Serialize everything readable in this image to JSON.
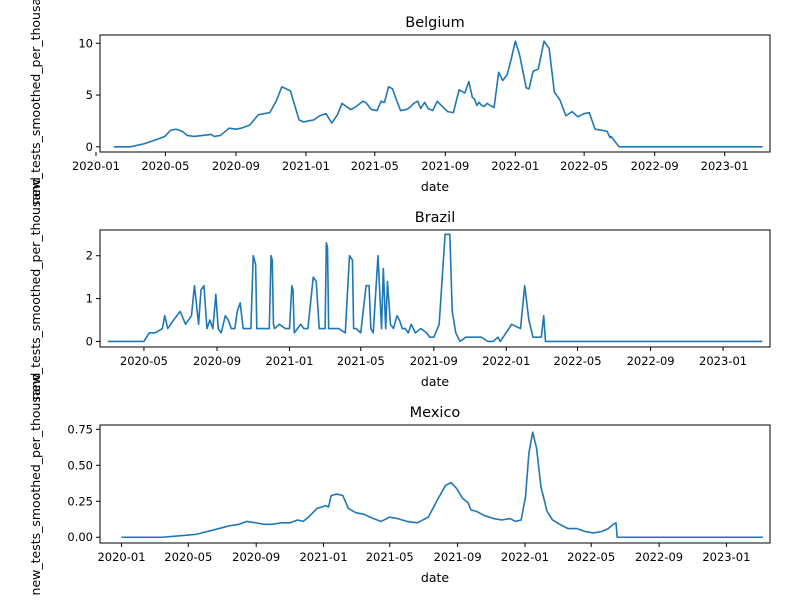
{
  "colors": {
    "line": "#1f77b4",
    "background": "#ffffff"
  },
  "chart_data": [
    {
      "type": "line",
      "title": "Belgium",
      "xlabel": "date",
      "ylabel": "new_tests_smoothed_per_thousand",
      "xlim": [
        "2020-01-08",
        "2023-03-21"
      ],
      "ylim": [
        -0.5,
        10.8
      ],
      "x_ticks": [
        "2020-01",
        "2020-05",
        "2020-09",
        "2021-01",
        "2021-05",
        "2021-09",
        "2022-01",
        "2022-05",
        "2022-09",
        "2023-01"
      ],
      "y_ticks": [
        0,
        5,
        10
      ],
      "grid": false,
      "series": [
        {
          "x": [
            "2020-02-01",
            "2020-03-01",
            "2020-03-25",
            "2020-04-15",
            "2020-04-30",
            "2020-05-10",
            "2020-05-20",
            "2020-05-30",
            "2020-06-08",
            "2020-06-20",
            "2020-07-05",
            "2020-07-20",
            "2020-07-25",
            "2020-08-05",
            "2020-08-20",
            "2020-09-01",
            "2020-09-10",
            "2020-09-25",
            "2020-10-10",
            "2020-10-20",
            "2020-10-30",
            "2020-11-10",
            "2020-11-20",
            "2020-12-05",
            "2020-12-20",
            "2020-12-28",
            "2021-01-05",
            "2021-01-15",
            "2021-01-25",
            "2021-02-05",
            "2021-02-15",
            "2021-02-25",
            "2021-03-05",
            "2021-03-20",
            "2021-03-30",
            "2021-04-10",
            "2021-04-15",
            "2021-04-25",
            "2021-05-05",
            "2021-05-12",
            "2021-05-18",
            "2021-05-25",
            "2021-06-01",
            "2021-06-08",
            "2021-06-15",
            "2021-06-25",
            "2021-07-01",
            "2021-07-08",
            "2021-07-15",
            "2021-07-20",
            "2021-07-27",
            "2021-08-02",
            "2021-08-10",
            "2021-08-18",
            "2021-08-25",
            "2021-09-05",
            "2021-09-15",
            "2021-09-25",
            "2021-10-05",
            "2021-10-12",
            "2021-10-18",
            "2021-10-22",
            "2021-10-26",
            "2021-10-30",
            "2021-11-03",
            "2021-11-08",
            "2021-11-13",
            "2021-11-18",
            "2021-11-25",
            "2021-12-03",
            "2021-12-10",
            "2021-12-18",
            "2021-12-25",
            "2022-01-01",
            "2022-01-08",
            "2022-01-15",
            "2022-01-20",
            "2022-01-25",
            "2022-02-01",
            "2022-02-10",
            "2022-02-20",
            "2022-03-01",
            "2022-03-10",
            "2022-03-20",
            "2022-03-30",
            "2022-04-10",
            "2022-04-20",
            "2022-05-01",
            "2022-05-10",
            "2022-05-20",
            "2022-06-01",
            "2022-06-10",
            "2022-06-15",
            "2022-06-17",
            "2022-07-01",
            "2022-09-01",
            "2022-12-01",
            "2023-03-08"
          ],
          "y": [
            0.0,
            0.0,
            0.3,
            0.7,
            1.0,
            1.6,
            1.7,
            1.5,
            1.1,
            1.0,
            1.1,
            1.2,
            1.0,
            1.1,
            1.8,
            1.7,
            1.8,
            2.1,
            3.1,
            3.2,
            3.3,
            4.4,
            5.8,
            5.4,
            2.6,
            2.4,
            2.5,
            2.6,
            3.0,
            3.2,
            2.3,
            3.1,
            4.2,
            3.6,
            3.9,
            4.4,
            4.3,
            3.6,
            3.5,
            4.4,
            4.3,
            5.8,
            5.6,
            4.5,
            3.5,
            3.6,
            3.8,
            4.2,
            4.4,
            3.7,
            4.3,
            3.7,
            3.5,
            4.4,
            4.0,
            3.4,
            3.3,
            5.5,
            5.2,
            6.3,
            4.8,
            4.6,
            4.0,
            4.3,
            4.0,
            3.9,
            4.2,
            4.0,
            3.8,
            7.2,
            6.4,
            7.0,
            8.5,
            10.2,
            9.0,
            7.1,
            5.7,
            5.6,
            7.3,
            7.5,
            10.2,
            9.5,
            5.3,
            4.5,
            3.0,
            3.4,
            2.9,
            3.2,
            3.3,
            1.7,
            1.6,
            1.5,
            0.9,
            1.0,
            0.0,
            0.0,
            0.0,
            0.0
          ]
        }
      ]
    },
    {
      "type": "line",
      "title": "Brazil",
      "xlabel": "date",
      "ylabel": "new_tests_smoothed_per_thousand",
      "xlim": [
        "2020-02-17",
        "2023-03-21"
      ],
      "ylim": [
        -0.13,
        2.6
      ],
      "x_ticks": [
        "2020-05",
        "2020-09",
        "2021-01",
        "2021-05",
        "2021-09",
        "2022-01",
        "2022-05",
        "2022-09",
        "2023-01"
      ],
      "y_ticks": [
        0,
        1,
        2
      ],
      "grid": false,
      "series": [
        {
          "x": [
            "2020-03-01",
            "2020-04-15",
            "2020-05-01",
            "2020-05-10",
            "2020-05-20",
            "2020-06-01",
            "2020-06-05",
            "2020-06-10",
            "2020-06-15",
            "2020-06-20",
            "2020-07-01",
            "2020-07-10",
            "2020-07-20",
            "2020-07-25",
            "2020-08-01",
            "2020-08-05",
            "2020-08-10",
            "2020-08-15",
            "2020-08-20",
            "2020-08-25",
            "2020-08-30",
            "2020-09-03",
            "2020-09-08",
            "2020-09-15",
            "2020-09-20",
            "2020-09-25",
            "2020-10-01",
            "2020-10-05",
            "2020-10-10",
            "2020-10-15",
            "2020-10-20",
            "2020-10-28",
            "2020-11-01",
            "2020-11-03",
            "2020-11-05",
            "2020-11-07",
            "2020-11-10",
            "2020-11-20",
            "2020-11-28",
            "2020-12-01",
            "2020-12-03",
            "2020-12-05",
            "2020-12-07",
            "2020-12-15",
            "2020-12-25",
            "2021-01-01",
            "2021-01-05",
            "2021-01-07",
            "2021-01-09",
            "2021-01-20",
            "2021-01-25",
            "2021-02-01",
            "2021-02-10",
            "2021-02-15",
            "2021-02-20",
            "2021-02-25",
            "2021-03-02",
            "2021-03-04",
            "2021-03-06",
            "2021-03-08",
            "2021-03-15",
            "2021-03-25",
            "2021-04-05",
            "2021-04-12",
            "2021-04-17",
            "2021-04-19",
            "2021-04-23",
            "2021-05-01",
            "2021-05-10",
            "2021-05-15",
            "2021-05-18",
            "2021-05-22",
            "2021-05-30",
            "2021-06-05",
            "2021-06-08",
            "2021-06-12",
            "2021-06-15",
            "2021-06-20",
            "2021-06-25",
            "2021-07-01",
            "2021-07-05",
            "2021-07-10",
            "2021-07-15",
            "2021-07-20",
            "2021-07-25",
            "2021-08-01",
            "2021-08-10",
            "2021-08-20",
            "2021-08-25",
            "2021-09-01",
            "2021-09-10",
            "2021-09-20",
            "2021-09-28",
            "2021-10-02",
            "2021-10-08",
            "2021-10-15",
            "2021-10-25",
            "2021-11-05",
            "2021-11-20",
            "2021-12-01",
            "2021-12-10",
            "2021-12-18",
            "2021-12-22",
            "2022-01-10",
            "2022-01-25",
            "2022-02-01",
            "2022-02-08",
            "2022-02-15",
            "2022-02-22",
            "2022-03-01",
            "2022-03-05",
            "2022-03-08",
            "2022-03-10",
            "2022-03-12",
            "2022-06-01",
            "2022-12-01",
            "2023-03-08"
          ],
          "y": [
            0.0,
            0.0,
            0.0,
            0.2,
            0.2,
            0.3,
            0.6,
            0.3,
            0.4,
            0.5,
            0.7,
            0.4,
            0.6,
            1.3,
            0.4,
            1.2,
            1.3,
            0.3,
            0.5,
            0.3,
            1.1,
            0.3,
            0.2,
            0.6,
            0.5,
            0.3,
            0.3,
            0.7,
            0.9,
            0.3,
            0.3,
            0.3,
            2.0,
            1.9,
            1.8,
            0.3,
            0.3,
            0.3,
            0.3,
            2.0,
            1.9,
            0.4,
            0.3,
            0.4,
            0.3,
            0.3,
            1.3,
            1.2,
            0.2,
            0.4,
            0.3,
            0.3,
            1.5,
            1.4,
            0.3,
            0.3,
            0.3,
            2.3,
            2.2,
            0.3,
            0.3,
            0.3,
            0.2,
            2.0,
            1.9,
            0.3,
            0.3,
            0.2,
            1.3,
            1.3,
            0.3,
            0.2,
            2.0,
            0.3,
            1.7,
            0.3,
            1.4,
            0.4,
            0.3,
            0.6,
            0.5,
            0.3,
            0.3,
            0.2,
            0.4,
            0.2,
            0.3,
            0.2,
            0.1,
            0.1,
            0.4,
            2.5,
            2.5,
            0.7,
            0.2,
            0.0,
            0.1,
            0.1,
            0.1,
            0.0,
            0.0,
            0.1,
            0.0,
            0.4,
            0.3,
            1.3,
            0.5,
            0.1,
            0.1,
            0.1,
            0.6,
            0.0,
            0.0,
            0.0,
            0.0,
            0.0,
            0.0
          ]
        }
      ]
    },
    {
      "type": "line",
      "title": "Mexico",
      "xlabel": "date",
      "ylabel": "new_tests_smoothed_per_thousand",
      "xlim": [
        "2019-11-23",
        "2023-03-21"
      ],
      "ylim": [
        -0.04,
        0.78
      ],
      "x_ticks": [
        "2020-01",
        "2020-05",
        "2020-09",
        "2021-01",
        "2021-05",
        "2021-09",
        "2022-01",
        "2022-05",
        "2022-09",
        "2023-01"
      ],
      "y_ticks": [
        0.0,
        0.25,
        0.5,
        0.75
      ],
      "grid": false,
      "series": [
        {
          "x": [
            "2020-01-01",
            "2020-02-15",
            "2020-03-15",
            "2020-04-15",
            "2020-05-15",
            "2020-06-15",
            "2020-07-15",
            "2020-08-01",
            "2020-08-15",
            "2020-09-01",
            "2020-09-15",
            "2020-10-01",
            "2020-10-15",
            "2020-11-01",
            "2020-11-15",
            "2020-11-25",
            "2020-12-05",
            "2020-12-20",
            "2021-01-05",
            "2021-01-10",
            "2021-01-15",
            "2021-01-25",
            "2021-02-05",
            "2021-02-15",
            "2021-03-01",
            "2021-03-15",
            "2021-04-01",
            "2021-04-15",
            "2021-05-01",
            "2021-05-15",
            "2021-06-01",
            "2021-06-20",
            "2021-07-10",
            "2021-07-25",
            "2021-08-10",
            "2021-08-20",
            "2021-08-30",
            "2021-09-10",
            "2021-09-20",
            "2021-09-25",
            "2021-10-05",
            "2021-10-20",
            "2021-11-05",
            "2021-11-20",
            "2021-12-05",
            "2021-12-15",
            "2021-12-25",
            "2022-01-02",
            "2022-01-08",
            "2022-01-15",
            "2022-01-22",
            "2022-01-30",
            "2022-02-10",
            "2022-02-20",
            "2022-03-05",
            "2022-03-20",
            "2022-04-05",
            "2022-04-20",
            "2022-05-05",
            "2022-05-20",
            "2022-06-01",
            "2022-06-10",
            "2022-06-15",
            "2022-06-17",
            "2022-07-01",
            "2022-12-01",
            "2023-03-08"
          ],
          "y": [
            0.0,
            0.0,
            0.0,
            0.01,
            0.02,
            0.05,
            0.08,
            0.09,
            0.11,
            0.1,
            0.09,
            0.09,
            0.1,
            0.1,
            0.12,
            0.11,
            0.14,
            0.2,
            0.22,
            0.21,
            0.29,
            0.3,
            0.29,
            0.2,
            0.17,
            0.16,
            0.13,
            0.11,
            0.14,
            0.13,
            0.11,
            0.1,
            0.14,
            0.25,
            0.36,
            0.38,
            0.34,
            0.27,
            0.24,
            0.19,
            0.18,
            0.15,
            0.13,
            0.12,
            0.13,
            0.11,
            0.12,
            0.28,
            0.58,
            0.73,
            0.62,
            0.35,
            0.18,
            0.12,
            0.09,
            0.06,
            0.06,
            0.04,
            0.03,
            0.04,
            0.06,
            0.09,
            0.1,
            0.0,
            0.0,
            0.0,
            0.0
          ]
        }
      ]
    }
  ]
}
